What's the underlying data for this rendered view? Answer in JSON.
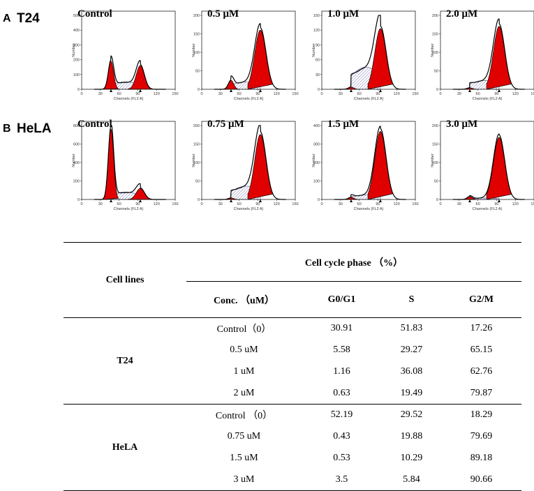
{
  "rows": [
    {
      "letter": "A",
      "name": "T24",
      "panels": [
        {
          "title": "Control",
          "ticks": [
            "0",
            "30",
            "60",
            "90",
            "120",
            "150"
          ],
          "yticks": [
            "0",
            "100",
            "200",
            "300",
            "400",
            "500"
          ],
          "xlabel": "Channels (FL2 A)",
          "ylabel": "Number",
          "peaks": [
            0.38,
            0.1,
            0.32
          ]
        },
        {
          "title": "0.5 μM",
          "ticks": [
            "0",
            "30",
            "60",
            "90",
            "120",
            "150"
          ],
          "yticks": [
            "0",
            "50",
            "100",
            "150",
            "200"
          ],
          "xlabel": "Channels (FL2 A)",
          "ylabel": "Number",
          "peaks": [
            0.12,
            0.1,
            0.8
          ]
        },
        {
          "title": "1.0 μM",
          "ticks": [
            "0",
            "30",
            "60",
            "90",
            "120",
            "150"
          ],
          "yticks": [
            "0",
            "30",
            "60",
            "90",
            "120",
            "150"
          ],
          "xlabel": "Channels (FL2 A)",
          "ylabel": "Number",
          "peaks": [
            0.03,
            0.3,
            0.82
          ]
        },
        {
          "title": "2.0 μM",
          "ticks": [
            "0",
            "30",
            "60",
            "90",
            "120",
            "150"
          ],
          "yticks": [
            "0",
            "50",
            "100",
            "150",
            "200"
          ],
          "xlabel": "Channels (FL2 A)",
          "ylabel": "Number",
          "peaks": [
            0.02,
            0.12,
            0.85
          ]
        }
      ]
    },
    {
      "letter": "B",
      "name": "HeLA",
      "panels": [
        {
          "title": "Control",
          "ticks": [
            "0",
            "30",
            "60",
            "90",
            "120",
            "150"
          ],
          "yticks": [
            "0",
            "200",
            "400",
            "600",
            "800"
          ],
          "xlabel": "Channels (FL2 A)",
          "ylabel": "Number",
          "peaks": [
            0.95,
            0.1,
            0.15
          ]
        },
        {
          "title": "0.75 μM",
          "ticks": [
            "0",
            "30",
            "60",
            "90",
            "120",
            "150"
          ],
          "yticks": [
            "0",
            "50",
            "100",
            "150",
            "200"
          ],
          "xlabel": "Channels (FL2 A)",
          "ylabel": "Number",
          "peaks": [
            0.02,
            0.18,
            0.88
          ]
        },
        {
          "title": "1.5 μM",
          "ticks": [
            "0",
            "30",
            "60",
            "90",
            "120",
            "150"
          ],
          "yticks": [
            "0",
            "100",
            "200",
            "300",
            "400"
          ],
          "xlabel": "Channels (FL2 A)",
          "ylabel": "Number",
          "peaks": [
            0.03,
            0.06,
            0.92
          ]
        },
        {
          "title": "3.0 μM",
          "ticks": [
            "0",
            "30",
            "60",
            "90",
            "120",
            "150"
          ],
          "yticks": [
            "0",
            "50",
            "100",
            "150",
            "200"
          ],
          "xlabel": "Channels (FL2 A)",
          "ylabel": "Number",
          "peaks": [
            0.04,
            0.02,
            0.84
          ]
        }
      ]
    }
  ],
  "table": {
    "header_cell_lines": "Cell lines",
    "header_phase": "Cell cycle phase （%）",
    "header_conc": "Conc. （uM）",
    "header_g0g1": "G0/G1",
    "header_s": "S",
    "header_g2m": "G2/M",
    "groups": [
      {
        "line": "T24",
        "rows": [
          {
            "conc": "Control（0）",
            "g0g1": "30.91",
            "s": "51.83",
            "g2m": "17.26"
          },
          {
            "conc": "0.5 uM",
            "g0g1": "5.58",
            "s": "29.27",
            "g2m": "65.15"
          },
          {
            "conc": "1 uM",
            "g0g1": "1.16",
            "s": "36.08",
            "g2m": "62.76"
          },
          {
            "conc": "2 uM",
            "g0g1": "0.63",
            "s": "19.49",
            "g2m": "79.87"
          }
        ]
      },
      {
        "line": "HeLA",
        "rows": [
          {
            "conc": "Control （0）",
            "g0g1": "52.19",
            "s": "29.52",
            "g2m": "18.29"
          },
          {
            "conc": "0.75 uM",
            "g0g1": "0.43",
            "s": "19.88",
            "g2m": "79.69"
          },
          {
            "conc": "1.5 uM",
            "g0g1": "0.53",
            "s": "10.29",
            "g2m": "89.18"
          },
          {
            "conc": "3 uM",
            "g0g1": "3.5",
            "s": "5.84",
            "g2m": "90.66"
          }
        ]
      }
    ]
  }
}
